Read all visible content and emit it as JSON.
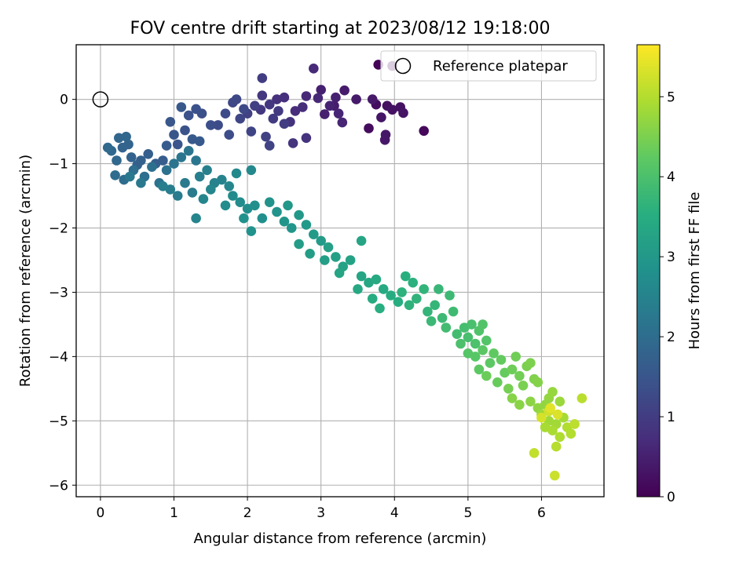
{
  "chart_data": {
    "type": "scatter",
    "title": "FOV centre drift starting at 2023/08/12 19:18:00",
    "xlabel": "Angular distance from reference (arcmin)",
    "ylabel": "Rotation from reference (arcmin)",
    "xlim": [
      -0.33,
      6.85
    ],
    "ylim": [
      -6.18,
      0.85
    ],
    "xticks": [
      "0",
      "1",
      "2",
      "3",
      "4",
      "5",
      "6"
    ],
    "yticks": [
      "0",
      "−1",
      "−2",
      "−3",
      "−4",
      "−5",
      "−6"
    ],
    "grid": true,
    "colormap": "viridis",
    "colorbar": {
      "label": "Hours from first FF file",
      "range": [
        0,
        5.65
      ],
      "ticks": [
        "0",
        "1",
        "2",
        "3",
        "4",
        "5"
      ]
    },
    "legend": {
      "position": "top-right",
      "entries": [
        {
          "label": "Reference platepar",
          "marker": "open-circle"
        }
      ]
    },
    "reference_point": {
      "x": 0.0,
      "y": 0.0
    },
    "series": [
      {
        "name": "FOV centre drift",
        "points": [
          [
            3.78,
            0.54,
            0.05
          ],
          [
            3.97,
            0.52,
            0.1
          ],
          [
            4.4,
            -0.49,
            0.12
          ],
          [
            3.65,
            -0.45,
            0.18
          ],
          [
            3.75,
            -0.08,
            0.2
          ],
          [
            3.9,
            -0.1,
            0.22
          ],
          [
            3.97,
            -0.16,
            0.25
          ],
          [
            4.08,
            -0.12,
            0.28
          ],
          [
            4.12,
            -0.21,
            0.3
          ],
          [
            3.82,
            -0.28,
            0.32
          ],
          [
            3.88,
            -0.55,
            0.35
          ],
          [
            3.87,
            -0.63,
            0.36
          ],
          [
            3.7,
            0.0,
            0.38
          ],
          [
            3.48,
            0.0,
            0.4
          ],
          [
            3.32,
            0.14,
            0.42
          ],
          [
            3.18,
            -0.1,
            0.45
          ],
          [
            3.05,
            -0.23,
            0.48
          ],
          [
            3.0,
            0.15,
            0.5
          ],
          [
            3.2,
            0.03,
            0.52
          ],
          [
            3.12,
            -0.1,
            0.55
          ],
          [
            3.24,
            -0.22,
            0.58
          ],
          [
            3.29,
            -0.36,
            0.6
          ],
          [
            2.96,
            0.02,
            0.62
          ],
          [
            2.8,
            0.05,
            0.65
          ],
          [
            2.9,
            0.48,
            0.66
          ],
          [
            2.65,
            -0.18,
            0.7
          ],
          [
            2.75,
            -0.12,
            0.72
          ],
          [
            2.5,
            0.03,
            0.75
          ],
          [
            2.4,
            0.0,
            0.78
          ],
          [
            2.58,
            -0.35,
            0.8
          ],
          [
            2.8,
            -0.6,
            0.82
          ],
          [
            2.62,
            -0.68,
            0.85
          ],
          [
            2.3,
            -0.08,
            0.88
          ],
          [
            2.2,
            0.06,
            0.9
          ],
          [
            2.18,
            -0.16,
            0.92
          ],
          [
            2.42,
            -0.18,
            0.95
          ],
          [
            2.35,
            -0.3,
            0.98
          ],
          [
            2.5,
            -0.38,
            1.0
          ],
          [
            2.2,
            0.33,
            1.02
          ],
          [
            2.1,
            -0.1,
            1.05
          ],
          [
            2.0,
            -0.22,
            1.08
          ],
          [
            2.25,
            -0.58,
            1.1
          ],
          [
            2.3,
            -0.72,
            1.12
          ],
          [
            2.05,
            -0.5,
            1.15
          ],
          [
            1.9,
            -0.3,
            1.18
          ],
          [
            1.8,
            -0.05,
            1.2
          ],
          [
            1.85,
            0.0,
            1.22
          ],
          [
            1.95,
            -0.15,
            1.25
          ],
          [
            1.7,
            -0.22,
            1.28
          ],
          [
            1.6,
            -0.4,
            1.3
          ],
          [
            1.75,
            -0.55,
            1.32
          ],
          [
            1.5,
            -0.4,
            1.35
          ],
          [
            1.38,
            -0.22,
            1.38
          ],
          [
            1.3,
            -0.15,
            1.4
          ],
          [
            1.2,
            -0.25,
            1.42
          ],
          [
            1.15,
            -0.48,
            1.45
          ],
          [
            1.05,
            -0.7,
            1.48
          ],
          [
            1.0,
            -0.55,
            1.5
          ],
          [
            0.95,
            -0.35,
            1.52
          ],
          [
            1.1,
            -0.12,
            1.55
          ],
          [
            1.35,
            -0.65,
            1.58
          ],
          [
            1.25,
            -0.62,
            1.6
          ],
          [
            0.9,
            -0.72,
            1.62
          ],
          [
            0.85,
            -0.95,
            1.65
          ],
          [
            0.75,
            -1.0,
            1.68
          ],
          [
            0.65,
            -0.85,
            1.7
          ],
          [
            0.55,
            -0.95,
            1.72
          ],
          [
            0.5,
            -1.02,
            1.75
          ],
          [
            0.42,
            -0.9,
            1.78
          ],
          [
            0.38,
            -0.7,
            1.8
          ],
          [
            0.3,
            -0.75,
            1.82
          ],
          [
            0.25,
            -0.6,
            1.85
          ],
          [
            0.35,
            -0.58,
            1.88
          ],
          [
            0.22,
            -0.95,
            1.9
          ],
          [
            0.15,
            -0.8,
            1.92
          ],
          [
            0.1,
            -0.75,
            1.95
          ],
          [
            0.2,
            -1.18,
            1.98
          ],
          [
            0.32,
            -1.25,
            2.0
          ],
          [
            0.45,
            -1.1,
            2.02
          ],
          [
            0.6,
            -1.2,
            2.05
          ],
          [
            0.7,
            -1.05,
            2.08
          ],
          [
            0.8,
            -1.3,
            2.1
          ],
          [
            0.9,
            -1.1,
            2.12
          ],
          [
            1.0,
            -1.0,
            2.15
          ],
          [
            1.1,
            -0.9,
            2.18
          ],
          [
            1.2,
            -0.8,
            2.2
          ],
          [
            1.3,
            -0.95,
            2.22
          ],
          [
            0.55,
            -1.3,
            2.25
          ],
          [
            0.4,
            -1.2,
            2.28
          ],
          [
            1.15,
            -1.3,
            2.3
          ],
          [
            1.25,
            -1.45,
            2.32
          ],
          [
            1.05,
            -1.5,
            2.35
          ],
          [
            0.95,
            -1.4,
            2.38
          ],
          [
            0.85,
            -1.35,
            2.4
          ],
          [
            1.35,
            -1.2,
            2.42
          ],
          [
            1.45,
            -1.1,
            2.45
          ],
          [
            1.55,
            -1.3,
            2.48
          ],
          [
            1.65,
            -1.25,
            2.5
          ],
          [
            1.3,
            -1.85,
            2.52
          ],
          [
            1.4,
            -1.55,
            2.55
          ],
          [
            1.5,
            -1.4,
            2.58
          ],
          [
            1.75,
            -1.35,
            2.6
          ],
          [
            1.85,
            -1.15,
            2.62
          ],
          [
            2.05,
            -1.1,
            2.65
          ],
          [
            1.8,
            -1.5,
            2.68
          ],
          [
            1.7,
            -1.65,
            2.7
          ],
          [
            1.9,
            -1.6,
            2.72
          ],
          [
            2.0,
            -1.7,
            2.75
          ],
          [
            2.1,
            -1.65,
            2.78
          ],
          [
            2.2,
            -1.85,
            2.8
          ],
          [
            1.95,
            -1.85,
            2.82
          ],
          [
            2.05,
            -2.05,
            2.85
          ],
          [
            2.3,
            -1.6,
            2.88
          ],
          [
            2.4,
            -1.75,
            2.9
          ],
          [
            2.5,
            -1.9,
            2.92
          ],
          [
            2.6,
            -2.0,
            2.95
          ],
          [
            2.55,
            -1.65,
            2.98
          ],
          [
            2.7,
            -1.8,
            3.0
          ],
          [
            2.8,
            -1.95,
            3.02
          ],
          [
            2.9,
            -2.1,
            3.05
          ],
          [
            3.0,
            -2.2,
            3.08
          ],
          [
            2.7,
            -2.25,
            3.1
          ],
          [
            2.85,
            -2.4,
            3.12
          ],
          [
            3.05,
            -2.5,
            3.15
          ],
          [
            3.1,
            -2.3,
            3.18
          ],
          [
            3.2,
            -2.45,
            3.2
          ],
          [
            3.3,
            -2.6,
            3.22
          ],
          [
            3.4,
            -2.5,
            3.25
          ],
          [
            3.25,
            -2.7,
            3.28
          ],
          [
            3.55,
            -2.2,
            3.3
          ],
          [
            3.55,
            -2.75,
            3.32
          ],
          [
            3.65,
            -2.85,
            3.35
          ],
          [
            3.5,
            -2.95,
            3.38
          ],
          [
            3.75,
            -2.8,
            3.4
          ],
          [
            3.85,
            -2.95,
            3.42
          ],
          [
            3.7,
            -3.1,
            3.45
          ],
          [
            3.95,
            -3.05,
            3.48
          ],
          [
            4.05,
            -3.15,
            3.5
          ],
          [
            3.8,
            -3.25,
            3.52
          ],
          [
            4.15,
            -2.75,
            3.55
          ],
          [
            4.25,
            -2.85,
            3.58
          ],
          [
            4.1,
            -3.0,
            3.6
          ],
          [
            4.2,
            -3.2,
            3.62
          ],
          [
            4.3,
            -3.1,
            3.65
          ],
          [
            4.4,
            -2.95,
            3.68
          ],
          [
            4.45,
            -3.3,
            3.7
          ],
          [
            4.55,
            -3.2,
            3.72
          ],
          [
            4.6,
            -2.95,
            3.75
          ],
          [
            4.5,
            -3.45,
            3.78
          ],
          [
            4.65,
            -3.4,
            3.8
          ],
          [
            4.75,
            -3.05,
            3.82
          ],
          [
            4.8,
            -3.3,
            3.85
          ],
          [
            4.7,
            -3.55,
            3.88
          ],
          [
            4.85,
            -3.65,
            3.9
          ],
          [
            4.95,
            -3.55,
            3.92
          ],
          [
            5.0,
            -3.7,
            3.95
          ],
          [
            5.05,
            -3.5,
            3.98
          ],
          [
            4.9,
            -3.8,
            4.0
          ],
          [
            5.1,
            -3.8,
            4.02
          ],
          [
            5.15,
            -3.6,
            4.05
          ],
          [
            5.2,
            -3.5,
            4.08
          ],
          [
            5.25,
            -3.75,
            4.1
          ],
          [
            5.0,
            -3.95,
            4.12
          ],
          [
            5.1,
            -4.0,
            4.15
          ],
          [
            5.2,
            -3.9,
            4.18
          ],
          [
            5.3,
            -4.1,
            4.2
          ],
          [
            5.15,
            -4.2,
            4.22
          ],
          [
            5.35,
            -3.95,
            4.25
          ],
          [
            5.45,
            -4.05,
            4.28
          ],
          [
            5.5,
            -4.25,
            4.3
          ],
          [
            5.4,
            -4.4,
            4.32
          ],
          [
            5.25,
            -4.3,
            4.35
          ],
          [
            5.6,
            -4.2,
            4.38
          ],
          [
            5.65,
            -4.0,
            4.4
          ],
          [
            5.7,
            -4.3,
            4.42
          ],
          [
            5.55,
            -4.5,
            4.45
          ],
          [
            5.75,
            -4.45,
            4.48
          ],
          [
            5.8,
            -4.15,
            4.5
          ],
          [
            5.85,
            -4.1,
            4.52
          ],
          [
            5.9,
            -4.35,
            4.55
          ],
          [
            5.95,
            -4.4,
            4.58
          ],
          [
            5.6,
            -4.65,
            4.6
          ],
          [
            5.7,
            -4.75,
            4.62
          ],
          [
            5.85,
            -4.7,
            4.65
          ],
          [
            5.95,
            -4.8,
            4.68
          ],
          [
            6.05,
            -4.75,
            4.7
          ],
          [
            6.1,
            -4.65,
            4.72
          ],
          [
            6.15,
            -4.55,
            4.75
          ],
          [
            6.25,
            -4.7,
            4.78
          ],
          [
            6.0,
            -4.9,
            4.8
          ],
          [
            6.1,
            -5.0,
            4.82
          ],
          [
            6.2,
            -5.05,
            4.85
          ],
          [
            6.3,
            -4.95,
            4.88
          ],
          [
            6.05,
            -5.1,
            4.9
          ],
          [
            6.15,
            -5.15,
            4.92
          ],
          [
            6.25,
            -5.25,
            4.95
          ],
          [
            6.35,
            -5.1,
            4.98
          ],
          [
            6.4,
            -5.2,
            5.0
          ],
          [
            6.2,
            -5.4,
            5.02
          ],
          [
            6.55,
            -4.65,
            5.05
          ],
          [
            6.45,
            -5.05,
            5.08
          ],
          [
            5.9,
            -5.5,
            5.12
          ],
          [
            6.18,
            -5.85,
            5.2
          ],
          [
            6.1,
            -4.85,
            5.25
          ],
          [
            6.0,
            -4.95,
            5.3
          ],
          [
            6.22,
            -4.9,
            5.35
          ],
          [
            6.12,
            -4.8,
            5.4
          ]
        ]
      }
    ]
  }
}
